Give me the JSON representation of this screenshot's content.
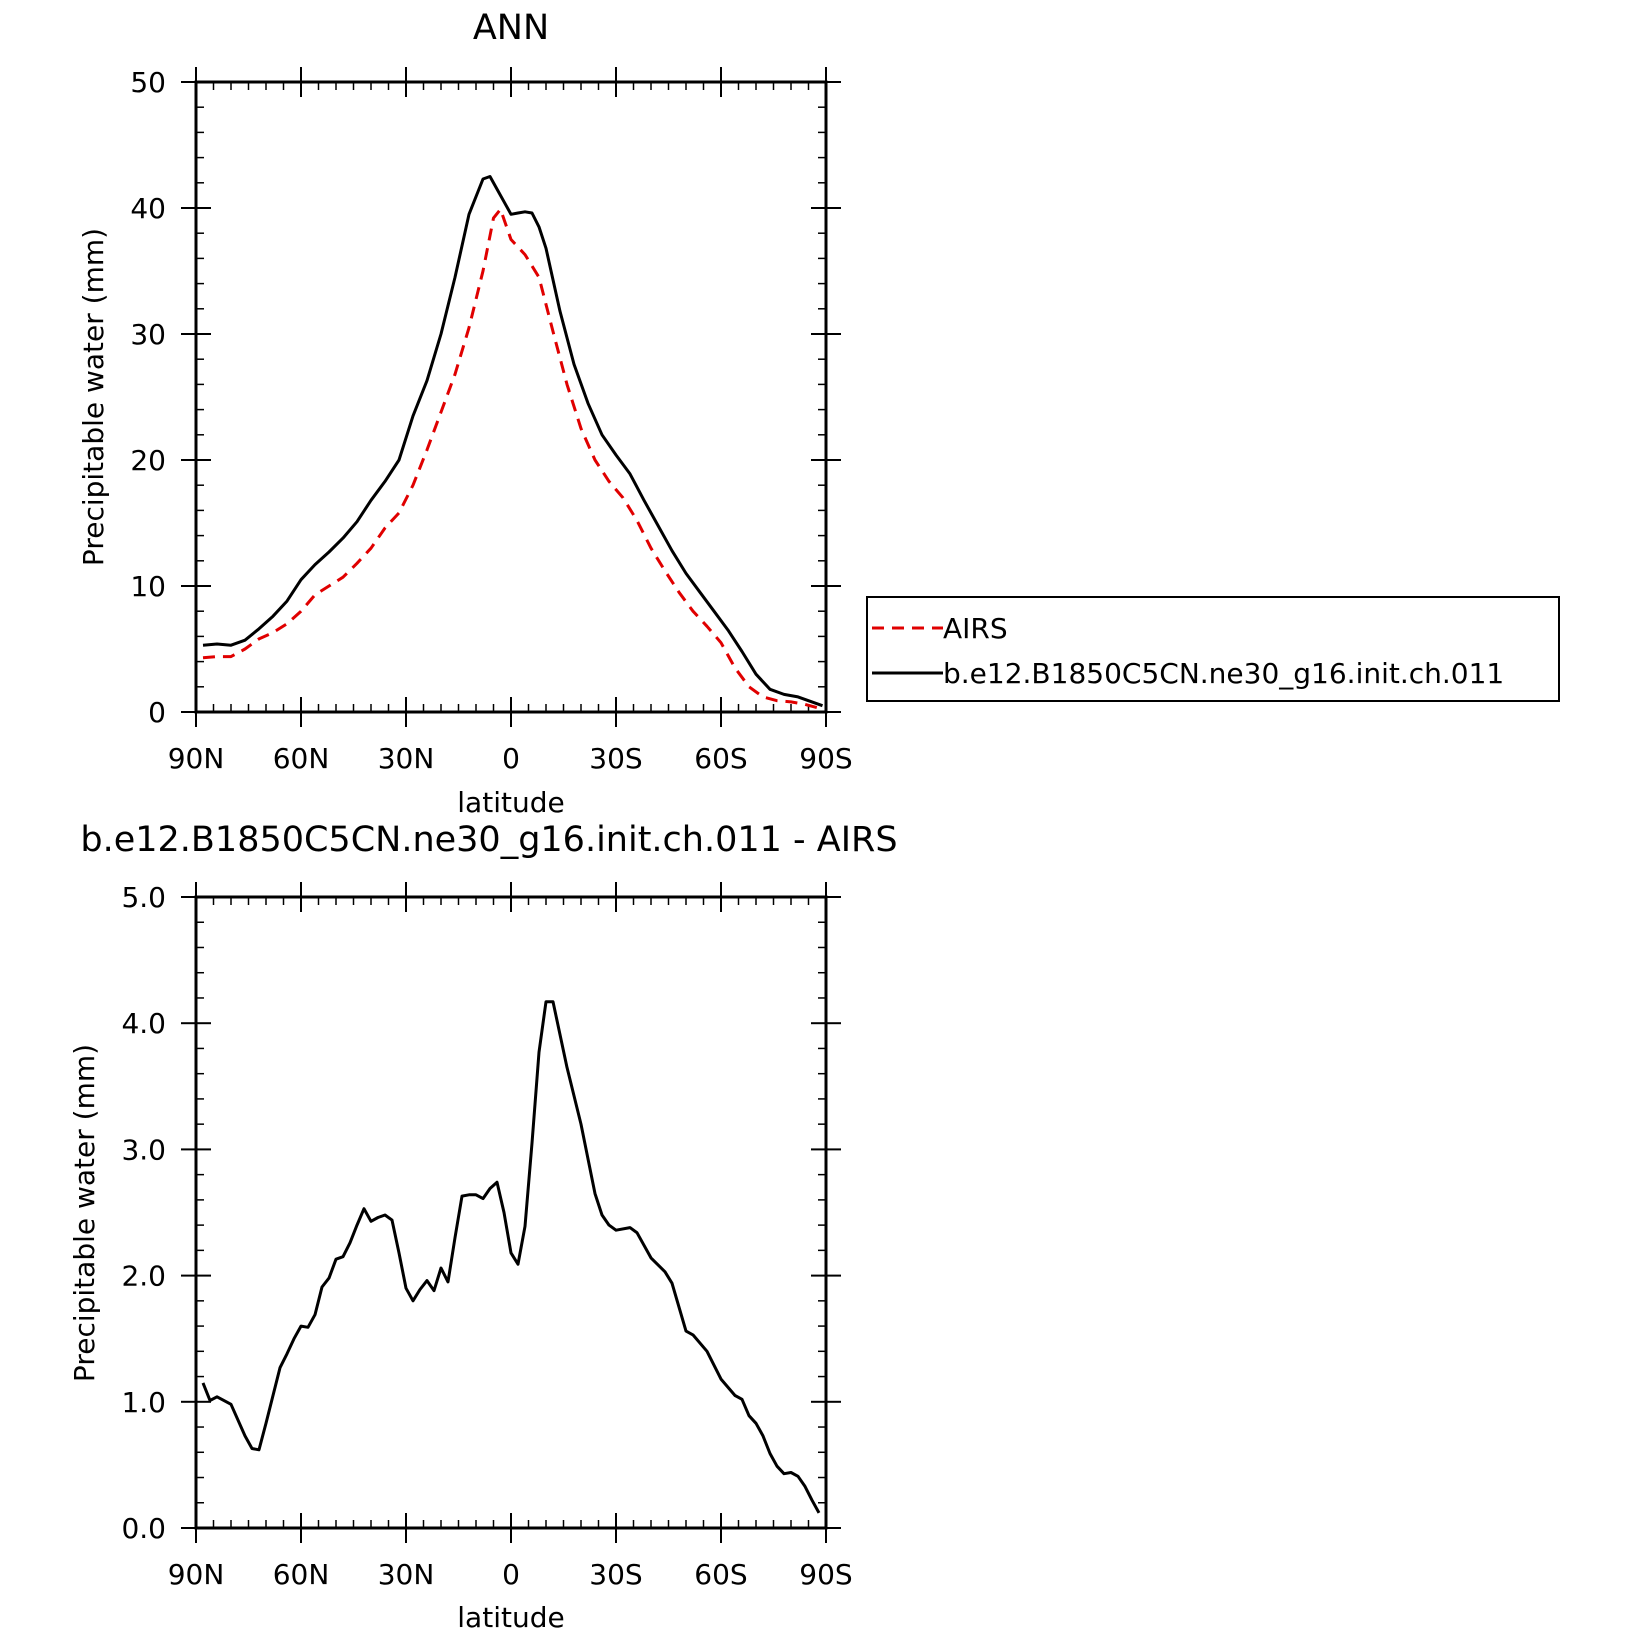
{
  "chart_data": [
    {
      "type": "line",
      "title": "ANN",
      "xlabel": "latitude",
      "ylabel": "Precipitable water (mm)",
      "xlim": [
        90,
        -90
      ],
      "ylim": [
        0,
        50
      ],
      "x_ticks": [
        {
          "value": 90,
          "label": "90N"
        },
        {
          "value": 60,
          "label": "60N"
        },
        {
          "value": 30,
          "label": "30N"
        },
        {
          "value": 0,
          "label": "0"
        },
        {
          "value": -30,
          "label": "30S"
        },
        {
          "value": -60,
          "label": "60S"
        },
        {
          "value": -90,
          "label": "90S"
        }
      ],
      "y_ticks": [
        {
          "value": 0,
          "label": "0"
        },
        {
          "value": 10,
          "label": "10"
        },
        {
          "value": 20,
          "label": "20"
        },
        {
          "value": 30,
          "label": "30"
        },
        {
          "value": 40,
          "label": "40"
        },
        {
          "value": 50,
          "label": "50"
        }
      ],
      "legend": "right",
      "series": [
        {
          "name": "AIRS",
          "color": "#e00000",
          "style": "dashed",
          "x": [
            88,
            84,
            80,
            76,
            72,
            68,
            64,
            60,
            56,
            52,
            48,
            44,
            40,
            36,
            32,
            28,
            24,
            20,
            16,
            12,
            8,
            5,
            3,
            0,
            -4,
            -8,
            -12,
            -16,
            -20,
            -24,
            -28,
            -32,
            -36,
            -40,
            -44,
            -48,
            -52,
            -56,
            -60,
            -64,
            -68,
            -72,
            -76,
            -80,
            -84,
            -88
          ],
          "y": [
            4.3,
            4.4,
            4.4,
            5.0,
            5.8,
            6.3,
            7.0,
            8.0,
            9.3,
            10.0,
            10.7,
            11.8,
            13.0,
            14.6,
            15.8,
            18.0,
            20.8,
            23.8,
            26.8,
            30.5,
            35.0,
            39.2,
            39.9,
            37.5,
            36.3,
            34.5,
            30.2,
            26.0,
            22.5,
            20.0,
            18.3,
            17.0,
            15.2,
            13.0,
            11.2,
            9.5,
            8.0,
            6.8,
            5.5,
            3.5,
            2.0,
            1.2,
            0.9,
            0.8,
            0.6,
            0.3
          ]
        },
        {
          "name": "b.e12.B1850C5CN.ne30_g16.init.ch.011",
          "color": "#000000",
          "style": "solid",
          "x": [
            88,
            84,
            80,
            76,
            72,
            68,
            64,
            60,
            56,
            52,
            48,
            44,
            40,
            36,
            32,
            28,
            24,
            20,
            16,
            12,
            8,
            6,
            4,
            2,
            0,
            -2,
            -4,
            -6,
            -8,
            -10,
            -14,
            -18,
            -22,
            -26,
            -30,
            -34,
            -38,
            -42,
            -46,
            -50,
            -54,
            -58,
            -62,
            -66,
            -70,
            -74,
            -78,
            -82,
            -86,
            -89
          ],
          "y": [
            5.3,
            5.4,
            5.3,
            5.7,
            6.6,
            7.6,
            8.8,
            10.5,
            11.7,
            12.7,
            13.8,
            15.1,
            16.8,
            18.3,
            20.0,
            23.5,
            26.3,
            30.0,
            34.5,
            39.5,
            42.3,
            42.5,
            41.5,
            40.5,
            39.5,
            39.6,
            39.7,
            39.6,
            38.5,
            36.8,
            31.8,
            27.6,
            24.5,
            22.0,
            20.4,
            18.9,
            16.8,
            14.8,
            12.8,
            11.0,
            9.5,
            8.0,
            6.5,
            4.8,
            3.0,
            1.8,
            1.4,
            1.2,
            0.8,
            0.5
          ]
        }
      ]
    },
    {
      "type": "line",
      "title": "b.e12.B1850C5CN.ne30_g16.init.ch.011 - AIRS",
      "xlabel": "latitude",
      "ylabel": "Precipitable water (mm)",
      "xlim": [
        90,
        -90
      ],
      "ylim": [
        0,
        5
      ],
      "x_ticks": [
        {
          "value": 90,
          "label": "90N"
        },
        {
          "value": 60,
          "label": "60N"
        },
        {
          "value": 30,
          "label": "30N"
        },
        {
          "value": 0,
          "label": "0"
        },
        {
          "value": -30,
          "label": "30S"
        },
        {
          "value": -60,
          "label": "60S"
        },
        {
          "value": -90,
          "label": "90S"
        }
      ],
      "y_ticks": [
        {
          "value": 0,
          "label": "0.0"
        },
        {
          "value": 1,
          "label": "1.0"
        },
        {
          "value": 2,
          "label": "2.0"
        },
        {
          "value": 3,
          "label": "3.0"
        },
        {
          "value": 4,
          "label": "4.0"
        },
        {
          "value": 5,
          "label": "5.0"
        }
      ],
      "series": [
        {
          "color": "#000000",
          "style": "solid",
          "x": [
            88,
            86,
            84,
            80,
            76,
            74,
            72,
            70,
            68,
            66,
            64,
            62,
            60,
            58,
            56,
            54,
            52,
            50,
            48,
            46,
            44,
            42,
            40,
            38,
            36,
            34,
            32,
            30,
            28,
            26,
            24,
            22,
            20,
            18,
            16,
            14,
            12,
            10,
            8,
            6,
            4,
            2,
            0,
            -2,
            -4,
            -6,
            -8,
            -10,
            -12,
            -16,
            -20,
            -24,
            -26,
            -28,
            -30,
            -34,
            -36,
            -40,
            -44,
            -46,
            -50,
            -52,
            -56,
            -60,
            -64,
            -66,
            -68,
            -70,
            -72,
            -74,
            -76,
            -78,
            -80,
            -82,
            -84,
            -86,
            -88
          ],
          "y": [
            1.15,
            1.01,
            1.04,
            0.98,
            0.73,
            0.63,
            0.62,
            0.83,
            1.05,
            1.27,
            1.38,
            1.5,
            1.6,
            1.59,
            1.69,
            1.91,
            1.98,
            2.13,
            2.15,
            2.26,
            2.4,
            2.53,
            2.43,
            2.46,
            2.48,
            2.44,
            2.18,
            1.9,
            1.8,
            1.89,
            1.96,
            1.88,
            2.06,
            1.95,
            2.3,
            2.63,
            2.64,
            2.64,
            2.61,
            2.69,
            2.74,
            2.5,
            2.18,
            2.09,
            2.39,
            3.05,
            3.77,
            4.17,
            4.17,
            3.65,
            3.2,
            2.65,
            2.48,
            2.4,
            2.36,
            2.38,
            2.34,
            2.14,
            2.03,
            1.94,
            1.56,
            1.53,
            1.4,
            1.18,
            1.05,
            1.02,
            0.89,
            0.83,
            0.73,
            0.59,
            0.49,
            0.43,
            0.44,
            0.41,
            0.33,
            0.22,
            0.12
          ]
        }
      ]
    }
  ]
}
